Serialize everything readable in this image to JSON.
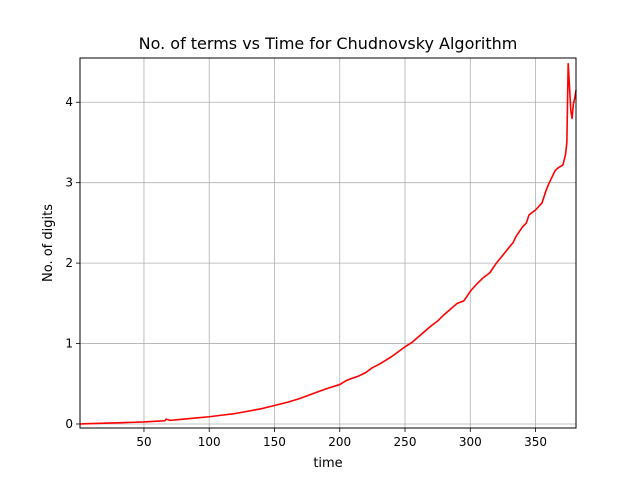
{
  "chart_data": {
    "type": "line",
    "title": "No. of terms vs Time for Chudnovsky Algorithm",
    "xlabel": "time",
    "ylabel": "No. of digits",
    "xlim": [
      1,
      381
    ],
    "ylim": [
      -0.05,
      4.55
    ],
    "xticks": [
      50,
      100,
      150,
      200,
      250,
      300,
      350
    ],
    "yticks": [
      0,
      1,
      2,
      3,
      4
    ],
    "grid": true,
    "series": [
      {
        "color": "#ff0000",
        "x": [
          1,
          10,
          20,
          30,
          40,
          50,
          60,
          66,
          67,
          70,
          80,
          90,
          100,
          110,
          120,
          130,
          140,
          150,
          160,
          170,
          180,
          190,
          200,
          205,
          210,
          215,
          220,
          225,
          230,
          235,
          240,
          245,
          250,
          255,
          260,
          265,
          270,
          275,
          280,
          285,
          290,
          295,
          298,
          300,
          305,
          310,
          315,
          320,
          325,
          330,
          333,
          335,
          340,
          343,
          345,
          350,
          355,
          358,
          360,
          362,
          365,
          367,
          369,
          371,
          373,
          374,
          375,
          376,
          377,
          378,
          379,
          380,
          381
        ],
        "y": [
          0.0,
          0.005,
          0.01,
          0.015,
          0.02,
          0.025,
          0.035,
          0.04,
          0.06,
          0.045,
          0.06,
          0.075,
          0.09,
          0.11,
          0.13,
          0.16,
          0.19,
          0.23,
          0.27,
          0.32,
          0.38,
          0.44,
          0.49,
          0.54,
          0.57,
          0.6,
          0.64,
          0.7,
          0.74,
          0.79,
          0.84,
          0.9,
          0.96,
          1.01,
          1.08,
          1.15,
          1.22,
          1.28,
          1.36,
          1.43,
          1.5,
          1.53,
          1.6,
          1.65,
          1.74,
          1.82,
          1.88,
          2.0,
          2.1,
          2.2,
          2.26,
          2.33,
          2.45,
          2.5,
          2.6,
          2.66,
          2.75,
          2.9,
          2.98,
          3.05,
          3.15,
          3.18,
          3.2,
          3.22,
          3.35,
          3.5,
          4.48,
          4.2,
          3.9,
          3.8,
          3.98,
          4.05,
          4.15
        ]
      }
    ]
  }
}
